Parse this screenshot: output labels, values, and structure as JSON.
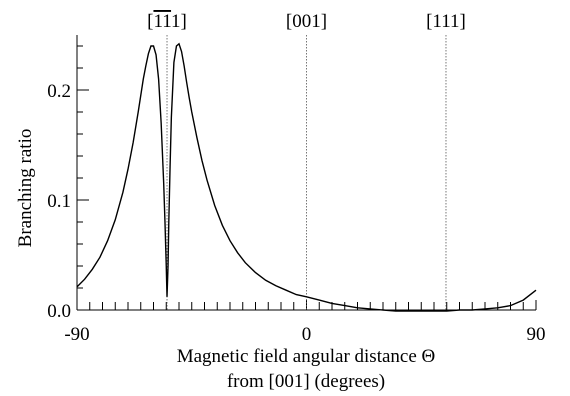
{
  "chart_data": {
    "type": "line",
    "title": "",
    "xlabel": "Magnetic field angular distance Θ",
    "xlabel_line2": "from [001] (degrees)",
    "ylabel": "Branching ratio",
    "xlim": [
      -90,
      90
    ],
    "ylim": [
      0,
      0.25
    ],
    "x_ticks": [
      -90,
      0,
      90
    ],
    "x_tick_labels": [
      "-90",
      "0",
      "90"
    ],
    "x_minor_step": 5,
    "y_ticks": [
      0.0,
      0.1,
      0.2
    ],
    "y_tick_labels": [
      "0.0",
      "0.1",
      "0.2"
    ],
    "y_minor_step": 0.02,
    "grid": false,
    "legend": "none",
    "vertical_markers": [
      {
        "x": -54.7,
        "label_bar": "11",
        "label_prefix": "[",
        "label_suffix": "1]"
      },
      {
        "x": 0,
        "label": "[001]"
      },
      {
        "x": 54.7,
        "label": "[111]"
      }
    ],
    "series": [
      {
        "x": [
          -90,
          -87,
          -84,
          -81,
          -78,
          -75,
          -72,
          -70,
          -68,
          -66,
          -64,
          -63,
          -62,
          -61,
          -60,
          -59,
          -58,
          -57,
          -56,
          -55.5,
          -55,
          -54.7,
          -54.3,
          -54,
          -53.5,
          -53,
          -52,
          -51,
          -50,
          -49,
          -48,
          -47,
          -46,
          -45,
          -43,
          -41,
          -39,
          -36,
          -33,
          -30,
          -27,
          -24,
          -20,
          -16,
          -12,
          -8,
          -4,
          0,
          5,
          10,
          15,
          20,
          25,
          30,
          35,
          40,
          45,
          50,
          55,
          60,
          65,
          70,
          75,
          80,
          85,
          90
        ],
        "y": [
          0.021,
          0.028,
          0.037,
          0.048,
          0.063,
          0.082,
          0.107,
          0.128,
          0.152,
          0.18,
          0.21,
          0.222,
          0.233,
          0.24,
          0.24,
          0.232,
          0.21,
          0.17,
          0.115,
          0.08,
          0.04,
          0.012,
          0.04,
          0.08,
          0.13,
          0.175,
          0.225,
          0.24,
          0.242,
          0.235,
          0.222,
          0.207,
          0.193,
          0.18,
          0.157,
          0.136,
          0.118,
          0.095,
          0.077,
          0.063,
          0.052,
          0.043,
          0.034,
          0.027,
          0.022,
          0.018,
          0.014,
          0.012,
          0.009,
          0.006,
          0.004,
          0.002,
          0.001,
          0.0,
          -0.001,
          -0.001,
          -0.001,
          -0.001,
          -0.001,
          0.0,
          0.0,
          0.001,
          0.002,
          0.004,
          0.009,
          0.018
        ]
      }
    ]
  }
}
